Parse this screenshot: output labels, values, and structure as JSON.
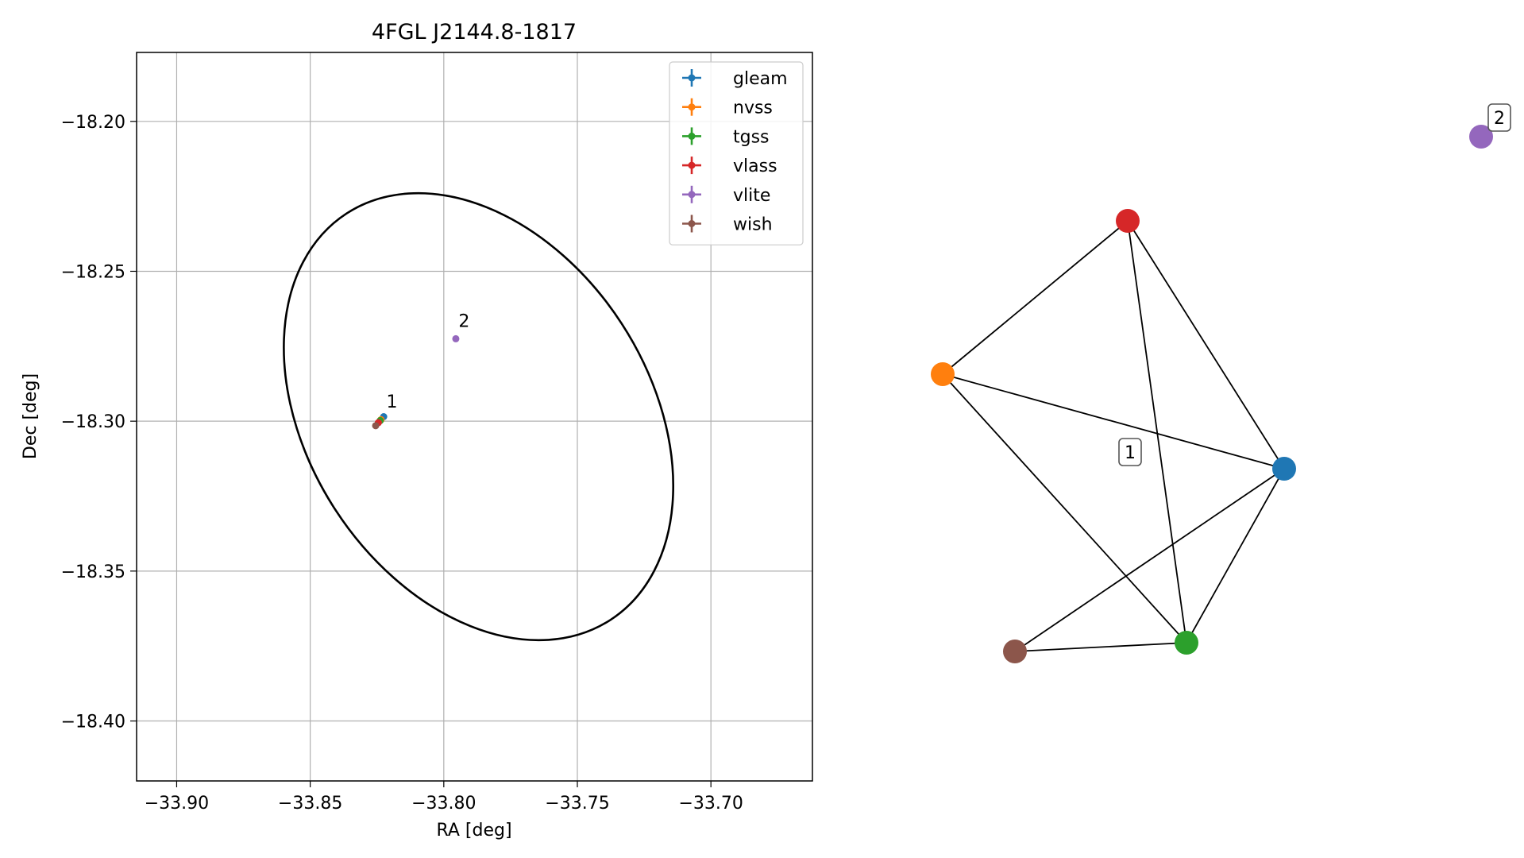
{
  "chart_data": [
    {
      "type": "scatter",
      "title": "4FGL J2144.8-1817",
      "xlabel": "RA [deg]",
      "ylabel": "Dec [deg]",
      "xlim": [
        -33.915,
        -33.662
      ],
      "ylim": [
        -18.42,
        -18.177
      ],
      "xticks": [
        -33.9,
        -33.85,
        -33.8,
        -33.75,
        -33.7
      ],
      "xtick_labels": [
        "−33.90",
        "−33.85",
        "−33.80",
        "−33.75",
        "−33.70"
      ],
      "yticks": [
        -18.2,
        -18.25,
        -18.3,
        -18.35,
        -18.4
      ],
      "ytick_labels": [
        "−18.20",
        "−18.25",
        "−18.30",
        "−18.35",
        "−18.40"
      ],
      "grid": true,
      "legend_position": "top-right",
      "series": [
        {
          "name": "gleam",
          "color": "#1f77b4",
          "x": [
            -33.8225
          ],
          "y": [
            -18.2985
          ]
        },
        {
          "name": "nvss",
          "color": "#ff7f0e",
          "x": [
            -33.8235
          ],
          "y": [
            -18.2995
          ]
        },
        {
          "name": "tgss",
          "color": "#2ca02c",
          "x": [
            -33.8238
          ],
          "y": [
            -18.2998
          ]
        },
        {
          "name": "vlass",
          "color": "#d62728",
          "x": [
            -33.8245
          ],
          "y": [
            -18.3005
          ]
        },
        {
          "name": "vlite",
          "color": "#9467bd",
          "x": [
            -33.7955
          ],
          "y": [
            -18.2725
          ]
        },
        {
          "name": "wish",
          "color": "#8c564b",
          "x": [
            -33.8255
          ],
          "y": [
            -18.3015
          ]
        }
      ],
      "ellipse": {
        "center_x": -33.787,
        "center_y": -18.2985,
        "color": "#000000"
      },
      "annotations": [
        {
          "text": "1",
          "x": -33.8215,
          "y": -18.2955
        },
        {
          "text": "2",
          "x": -33.7945,
          "y": -18.2685
        }
      ]
    },
    {
      "type": "network",
      "nodes": [
        {
          "id": "gleam",
          "color": "#1f77b4"
        },
        {
          "id": "nvss",
          "color": "#ff7f0e"
        },
        {
          "id": "tgss",
          "color": "#2ca02c"
        },
        {
          "id": "vlass",
          "color": "#d62728"
        },
        {
          "id": "vlite",
          "color": "#9467bd"
        },
        {
          "id": "wish",
          "color": "#8c564b"
        }
      ],
      "edges": [
        [
          "vlass",
          "nvss"
        ],
        [
          "vlass",
          "tgss"
        ],
        [
          "vlass",
          "gleam"
        ],
        [
          "nvss",
          "gleam"
        ],
        [
          "nvss",
          "tgss"
        ],
        [
          "gleam",
          "tgss"
        ],
        [
          "gleam",
          "wish"
        ],
        [
          "wish",
          "tgss"
        ]
      ],
      "cluster_labels": [
        {
          "text": "1",
          "members": [
            "gleam",
            "nvss",
            "tgss",
            "vlass",
            "wish"
          ]
        },
        {
          "text": "2",
          "members": [
            "vlite"
          ]
        }
      ]
    }
  ]
}
